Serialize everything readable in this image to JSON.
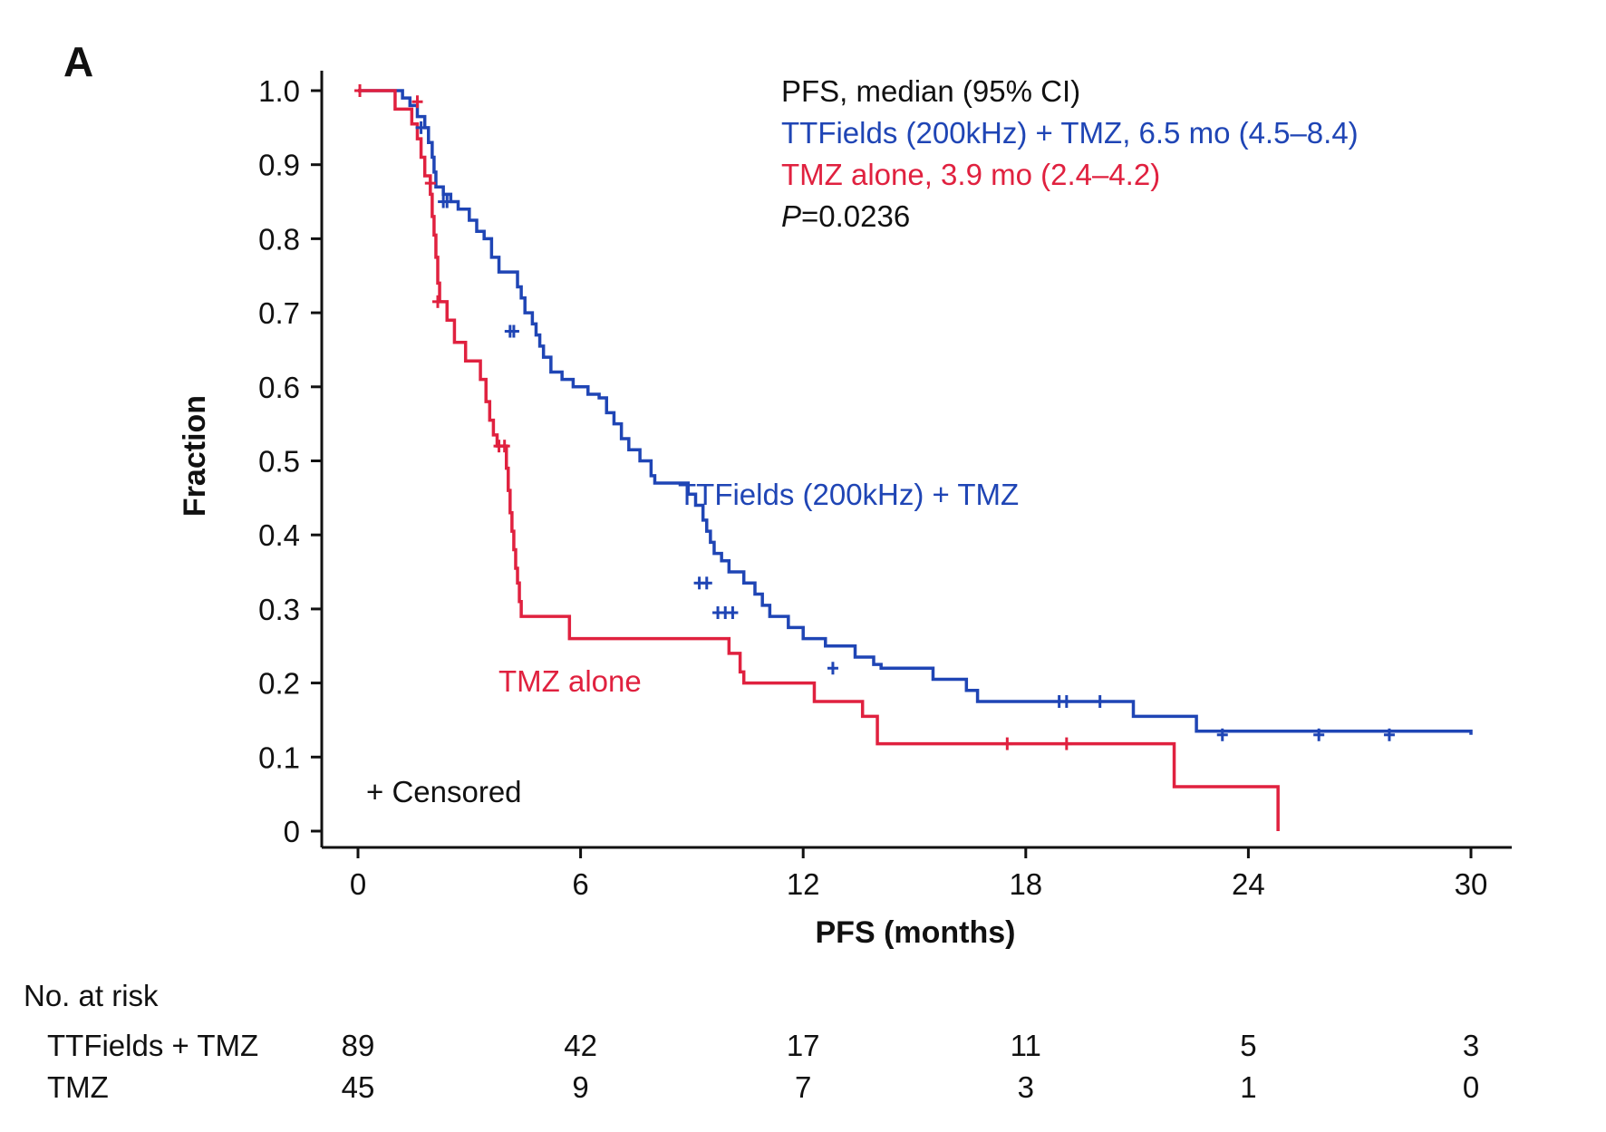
{
  "panel_label": "A",
  "colors": {
    "ttfields": "#1f45b5",
    "tmz": "#e0213f",
    "axis": "#111111"
  },
  "chart_data": {
    "type": "line",
    "subtype": "kaplan-meier",
    "xlabel": "PFS (months)",
    "ylabel": "Fraction",
    "xlim": [
      0,
      30
    ],
    "ylim": [
      0,
      1.0
    ],
    "xticks": [
      0,
      6,
      12,
      18,
      24,
      30
    ],
    "xtick_labels": [
      "0",
      "6",
      "12",
      "18",
      "24",
      "30"
    ],
    "yticks": [
      0,
      0.1,
      0.2,
      0.3,
      0.4,
      0.5,
      0.6,
      0.7,
      0.8,
      0.9,
      1.0
    ],
    "ytick_labels": [
      "0",
      "0.1",
      "0.2",
      "0.3",
      "0.4",
      "0.5",
      "0.6",
      "0.7",
      "0.8",
      "0.9",
      "1.0"
    ],
    "grid": false,
    "legend": {
      "header": "PFS, median (95% CI)",
      "entries": [
        {
          "series": "ttfields",
          "text": "TTFields (200kHz) + TMZ, 6.5 mo (4.5–8.4)"
        },
        {
          "series": "tmz",
          "text": "TMZ alone, 3.9 mo (2.4–4.2)"
        }
      ],
      "p_label": "P",
      "p_value": "=0.0236",
      "placement": "top-right"
    },
    "censor_note": "+ Censored",
    "series": [
      {
        "id": "ttfields",
        "name": "TTFields (200kHz) + TMZ",
        "color": "#1f45b5",
        "steps": [
          [
            0,
            1.0
          ],
          [
            1.2,
            0.99
          ],
          [
            1.4,
            0.98
          ],
          [
            1.6,
            0.965
          ],
          [
            1.8,
            0.95
          ],
          [
            1.9,
            0.93
          ],
          [
            2.0,
            0.91
          ],
          [
            2.05,
            0.89
          ],
          [
            2.1,
            0.87
          ],
          [
            2.3,
            0.86
          ],
          [
            2.5,
            0.85
          ],
          [
            2.7,
            0.84
          ],
          [
            3.0,
            0.825
          ],
          [
            3.2,
            0.81
          ],
          [
            3.4,
            0.8
          ],
          [
            3.6,
            0.775
          ],
          [
            4.2,
            0.755
          ],
          [
            4.0,
            0.755
          ],
          [
            3.9,
            0.755
          ],
          [
            3.9,
            0.755
          ]
        ],
        "censors": [
          [
            1.7,
            0.95
          ],
          [
            2.3,
            0.85
          ],
          [
            2.4,
            0.85
          ],
          [
            4.1,
            0.675
          ],
          [
            4.2,
            0.675
          ],
          [
            9.2,
            0.335
          ],
          [
            9.4,
            0.335
          ],
          [
            9.7,
            0.295
          ],
          [
            9.9,
            0.295
          ],
          [
            10.1,
            0.295
          ],
          [
            12.8,
            0.22
          ],
          [
            18.9,
            0.175
          ],
          [
            19.1,
            0.175
          ],
          [
            20.0,
            0.175
          ],
          [
            23.3,
            0.13
          ],
          [
            25.9,
            0.13
          ],
          [
            27.8,
            0.13
          ]
        ]
      },
      {
        "id": "tmz",
        "name": "TMZ alone",
        "color": "#e0213f",
        "censors": [
          [
            0.05,
            1.0
          ],
          [
            1.6,
            0.985
          ],
          [
            1.95,
            0.875
          ],
          [
            2.15,
            0.715
          ],
          [
            3.8,
            0.52
          ],
          [
            3.95,
            0.52
          ],
          [
            17.5,
            0.118
          ],
          [
            19.1,
            0.118
          ]
        ]
      }
    ],
    "curve_labels": [
      {
        "series": "ttfields",
        "text": "TTFields (200kHz) + TMZ"
      },
      {
        "series": "tmz",
        "text": "TMZ alone"
      }
    ]
  },
  "at_risk": {
    "title": "No. at risk",
    "times": [
      0,
      6,
      12,
      18,
      24,
      30
    ],
    "rows": [
      {
        "label": "TTFields + TMZ",
        "values": [
          "89",
          "42",
          "17",
          "11",
          "5",
          "3"
        ]
      },
      {
        "label": "TMZ",
        "values": [
          "45",
          "9",
          "7",
          "3",
          "1",
          "0"
        ]
      }
    ]
  }
}
